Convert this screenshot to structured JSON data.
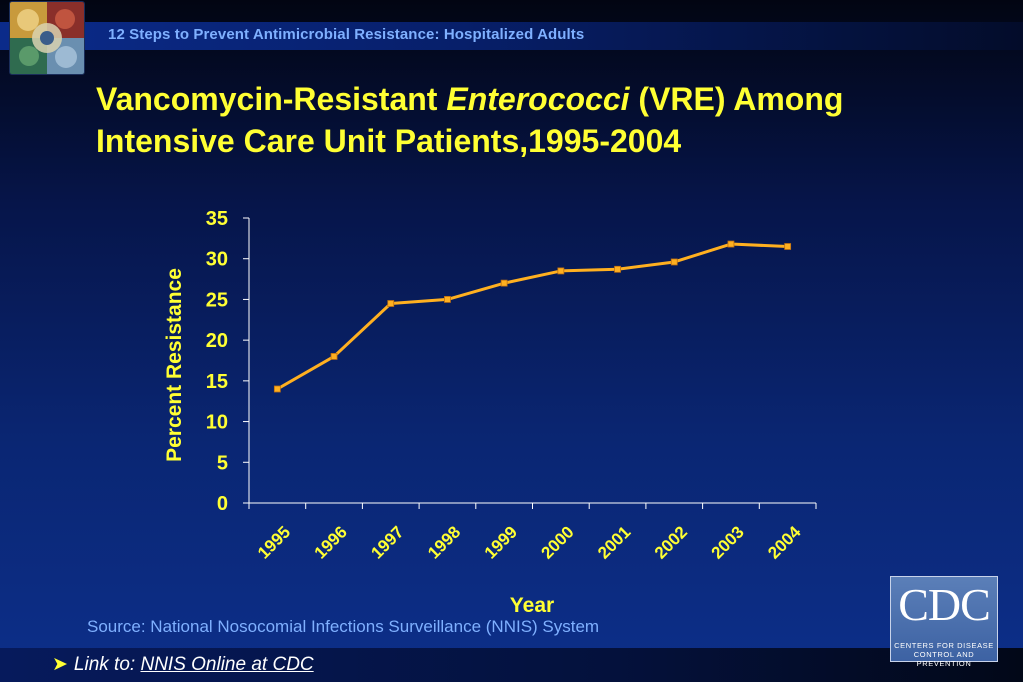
{
  "header": {
    "title": "12 Steps to Prevent Antimicrobial Resistance: Hospitalized Adults"
  },
  "slide": {
    "title_part1": "Vancomycin-Resistant ",
    "title_italic": "Enterococci",
    "title_part2": " (VRE) Among",
    "title_line2": "Intensive Care Unit Patients,1995-2004"
  },
  "chart_data": {
    "type": "line",
    "title": "",
    "xlabel": "Year",
    "ylabel": "Percent Resistance",
    "categories": [
      "1995",
      "1996",
      "1997",
      "1998",
      "1999",
      "2000",
      "2001",
      "2002",
      "2003",
      "2004"
    ],
    "series": [
      {
        "values": [
          14,
          18,
          24.5,
          25,
          27,
          28.5,
          28.7,
          29.6,
          31.8,
          31.5
        ]
      }
    ],
    "yticks": [
      "0",
      "5",
      "10",
      "15",
      "20",
      "25",
      "30",
      "35"
    ],
    "ylim": [
      0,
      35
    ],
    "grid": false,
    "legend": "none",
    "line_color": "#ffb020",
    "text_color": "#ffff33"
  },
  "footer": {
    "source": "Source: National Nosocomial Infections Surveillance (NNIS) System",
    "link_prefix": "Link to: ",
    "link_text": "NNIS Online at CDC"
  },
  "cdc_logo": {
    "text": "CDC",
    "line1": "CENTERS FOR DISEASE",
    "line2": "CONTROL AND PREVENTION"
  },
  "icons": {
    "header_logo": "collage-logo-icon",
    "bullet": "arrow-bullet-icon"
  }
}
